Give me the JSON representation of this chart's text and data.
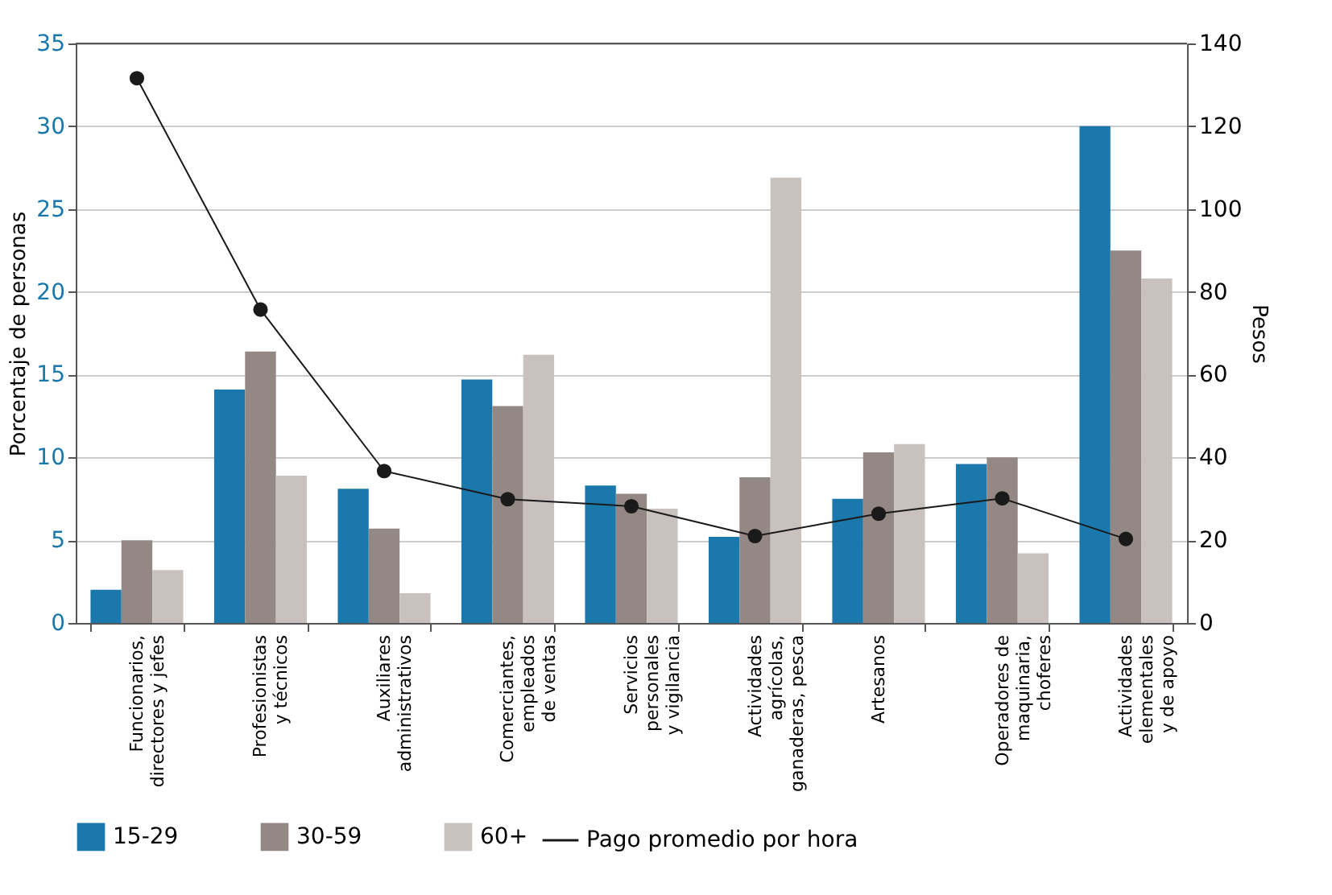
{
  "chart_data": {
    "type": "bar",
    "categories": [
      "Funcionarios,\ndirectores y jefes",
      "Profesionistas\ny técnicos",
      "Auxiliares\nadministrativos",
      "Comerciantes,\nempleados\nde ventas",
      "Servicios\npersonales\ny vigilancia",
      "Actividades\nagrícolas,\nganaderas, pesca",
      "Artesanos",
      "Operadores de\nmaquinaria,\nchoferes",
      "Actividades\nelementales\ny de apoyo"
    ],
    "series": [
      {
        "name": "15-29",
        "color": "#1a78ad",
        "values": [
          2.0,
          14.1,
          8.1,
          14.7,
          8.3,
          5.2,
          7.5,
          9.6,
          30.0
        ]
      },
      {
        "name": "30-59",
        "color": "#938883",
        "values": [
          5.0,
          16.4,
          5.7,
          13.1,
          7.8,
          8.8,
          10.3,
          10.0,
          22.5
        ]
      },
      {
        "name": "60+",
        "color": "#c8c1be",
        "values": [
          3.2,
          8.9,
          1.8,
          16.2,
          6.9,
          26.9,
          10.8,
          4.2,
          20.8
        ]
      },
      {
        "name": "Pago promedio por hora",
        "type": "line",
        "axis": "y2",
        "color": "#1a1a1a",
        "marker": "circle",
        "values": [
          131.6,
          75.7,
          36.7,
          29.9,
          28.2,
          21.0,
          26.4,
          30.1,
          20.3
        ]
      }
    ],
    "ylabel": "Porcentaje de personas",
    "y2label": "Pesos",
    "ylim": [
      0,
      35
    ],
    "yticks": [
      0,
      5,
      10,
      15,
      20,
      25,
      30,
      35
    ],
    "y2lim": [
      0,
      140
    ],
    "y2ticks": [
      0,
      20,
      40,
      60,
      80,
      100,
      120,
      140
    ],
    "grid": "y",
    "legend": "bottom"
  }
}
